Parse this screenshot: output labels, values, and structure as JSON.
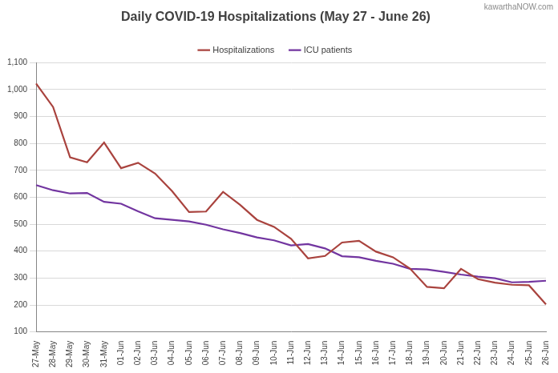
{
  "chart_data": {
    "type": "line",
    "title": "Daily COVID-19 Hospitalizations (May 27 - June 26)",
    "annotations": [
      "kawarthaNOW.com"
    ],
    "categories": [
      "27-May",
      "28-May",
      "29-May",
      "30-May",
      "31-May",
      "01-Jun",
      "02-Jun",
      "03-Jun",
      "04-Jun",
      "05-Jun",
      "06-Jun",
      "07-Jun",
      "08-Jun",
      "09-Jun",
      "10-Jun",
      "11-Jun",
      "12-Jun",
      "13-Jun",
      "14-Jun",
      "15-Jun",
      "16-Jun",
      "17-Jun",
      "18-Jun",
      "19-Jun",
      "20-Jun",
      "21-Jun",
      "22-Jun",
      "23-Jun",
      "24-Jun",
      "25-Jun",
      "26-Jun"
    ],
    "series": [
      {
        "name": "Hospitalizations",
        "color": "#a9433e",
        "values": [
          1022,
          935,
          748,
          730,
          803,
          708,
          728,
          688,
          623,
          545,
          547,
          620,
          572,
          516,
          490,
          446,
          373,
          382,
          432,
          438,
          398,
          377,
          335,
          267,
          262,
          334,
          296,
          283,
          275,
          273,
          202
        ]
      },
      {
        "name": "ICU patients",
        "color": "#7235a0",
        "values": [
          645,
          626,
          614,
          616,
          583,
          576,
          548,
          522,
          516,
          510,
          498,
          481,
          467,
          451,
          440,
          421,
          426,
          410,
          381,
          377,
          364,
          353,
          334,
          332,
          323,
          313,
          305,
          299,
          284,
          286,
          290
        ]
      }
    ],
    "ylim": [
      100,
      1100
    ],
    "yticks": [
      100,
      200,
      300,
      400,
      500,
      600,
      700,
      800,
      900,
      {
        "value": 1000,
        "label": "1,000"
      },
      {
        "value": 1100,
        "label": "1,100"
      }
    ],
    "grid": true,
    "legend": "top"
  }
}
